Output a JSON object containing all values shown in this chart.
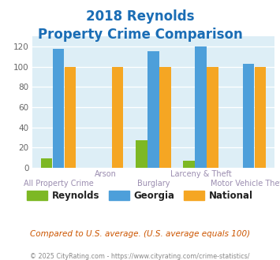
{
  "title_line1": "2018 Reynolds",
  "title_line2": "Property Crime Comparison",
  "categories": [
    "All Property Crime",
    "Arson",
    "Burglary",
    "Larceny & Theft",
    "Motor Vehicle Theft"
  ],
  "reynolds": [
    9,
    0,
    27,
    7,
    0
  ],
  "georgia": [
    118,
    0,
    115,
    120,
    103
  ],
  "national": [
    100,
    100,
    100,
    100,
    100
  ],
  "reynolds_color": "#7db824",
  "georgia_color": "#4d9fda",
  "national_color": "#f5a623",
  "ylim": [
    0,
    130
  ],
  "yticks": [
    0,
    20,
    40,
    60,
    80,
    100,
    120
  ],
  "plot_bg_color": "#ddeef6",
  "title_color": "#1a6db5",
  "xlabel_color": "#9b8db0",
  "footer_text": "Compared to U.S. average. (U.S. average equals 100)",
  "copyright_text": "© 2025 CityRating.com - https://www.cityrating.com/crime-statistics/",
  "footer_color": "#cc5500",
  "copyright_color": "#888888",
  "legend_labels": [
    "Reynolds",
    "Georgia",
    "National"
  ],
  "top_labels": [
    [
      1,
      "Arson"
    ],
    [
      3,
      "Larceny & Theft"
    ]
  ],
  "bottom_labels": [
    [
      0,
      "All Property Crime"
    ],
    [
      2,
      "Burglary"
    ],
    [
      4,
      "Motor Vehicle Theft"
    ]
  ]
}
